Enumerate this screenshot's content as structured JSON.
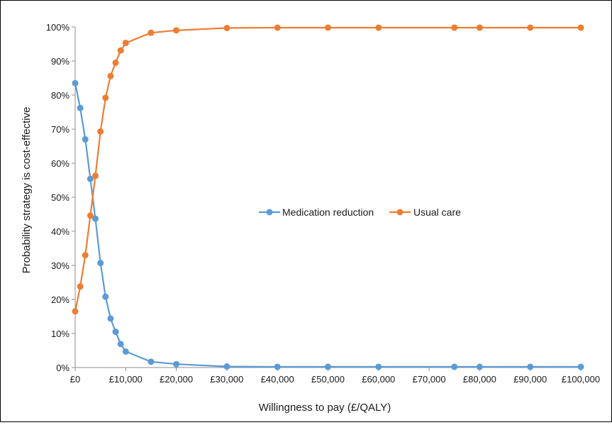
{
  "chart_data": {
    "type": "line",
    "title": "",
    "xlabel": "Willingness to pay (£/QALY)",
    "ylabel": "Probability strategy is cost-effective",
    "xlim": [
      0,
      100000
    ],
    "ylim": [
      0,
      100
    ],
    "x_ticks": [
      0,
      10000,
      20000,
      30000,
      40000,
      50000,
      60000,
      70000,
      80000,
      90000,
      100000
    ],
    "x_tick_labels": [
      "£0",
      "£10,000",
      "£20,000",
      "£30,000",
      "£40,000",
      "£50,000",
      "£60,000",
      "£70,000",
      "£80,000",
      "£90,000",
      "£100,000"
    ],
    "y_ticks": [
      0,
      10,
      20,
      30,
      40,
      50,
      60,
      70,
      80,
      90,
      100
    ],
    "y_tick_labels": [
      "0%",
      "10%",
      "20%",
      "30%",
      "40%",
      "50%",
      "60%",
      "70%",
      "80%",
      "90%",
      "100%"
    ],
    "grid": false,
    "legend_position": "center",
    "x": [
      0,
      1000,
      2000,
      3000,
      4000,
      5000,
      6000,
      7000,
      8000,
      9000,
      10000,
      15000,
      20000,
      30000,
      40000,
      50000,
      60000,
      75000,
      80000,
      90000,
      100000
    ],
    "series": [
      {
        "name": "Medication reduction",
        "color": "#5b9bd5",
        "values": [
          83.5,
          76.2,
          67.0,
          55.4,
          43.7,
          30.7,
          20.8,
          14.4,
          10.5,
          6.9,
          4.7,
          1.7,
          1.0,
          0.3,
          0.2,
          0.2,
          0.2,
          0.2,
          0.2,
          0.2,
          0.2
        ]
      },
      {
        "name": "Usual care",
        "color": "#ed7d31",
        "values": [
          16.5,
          23.8,
          33.0,
          44.6,
          56.3,
          69.3,
          79.2,
          85.6,
          89.5,
          93.1,
          95.3,
          98.3,
          99.0,
          99.7,
          99.8,
          99.8,
          99.8,
          99.8,
          99.8,
          99.8,
          99.8
        ]
      }
    ]
  }
}
